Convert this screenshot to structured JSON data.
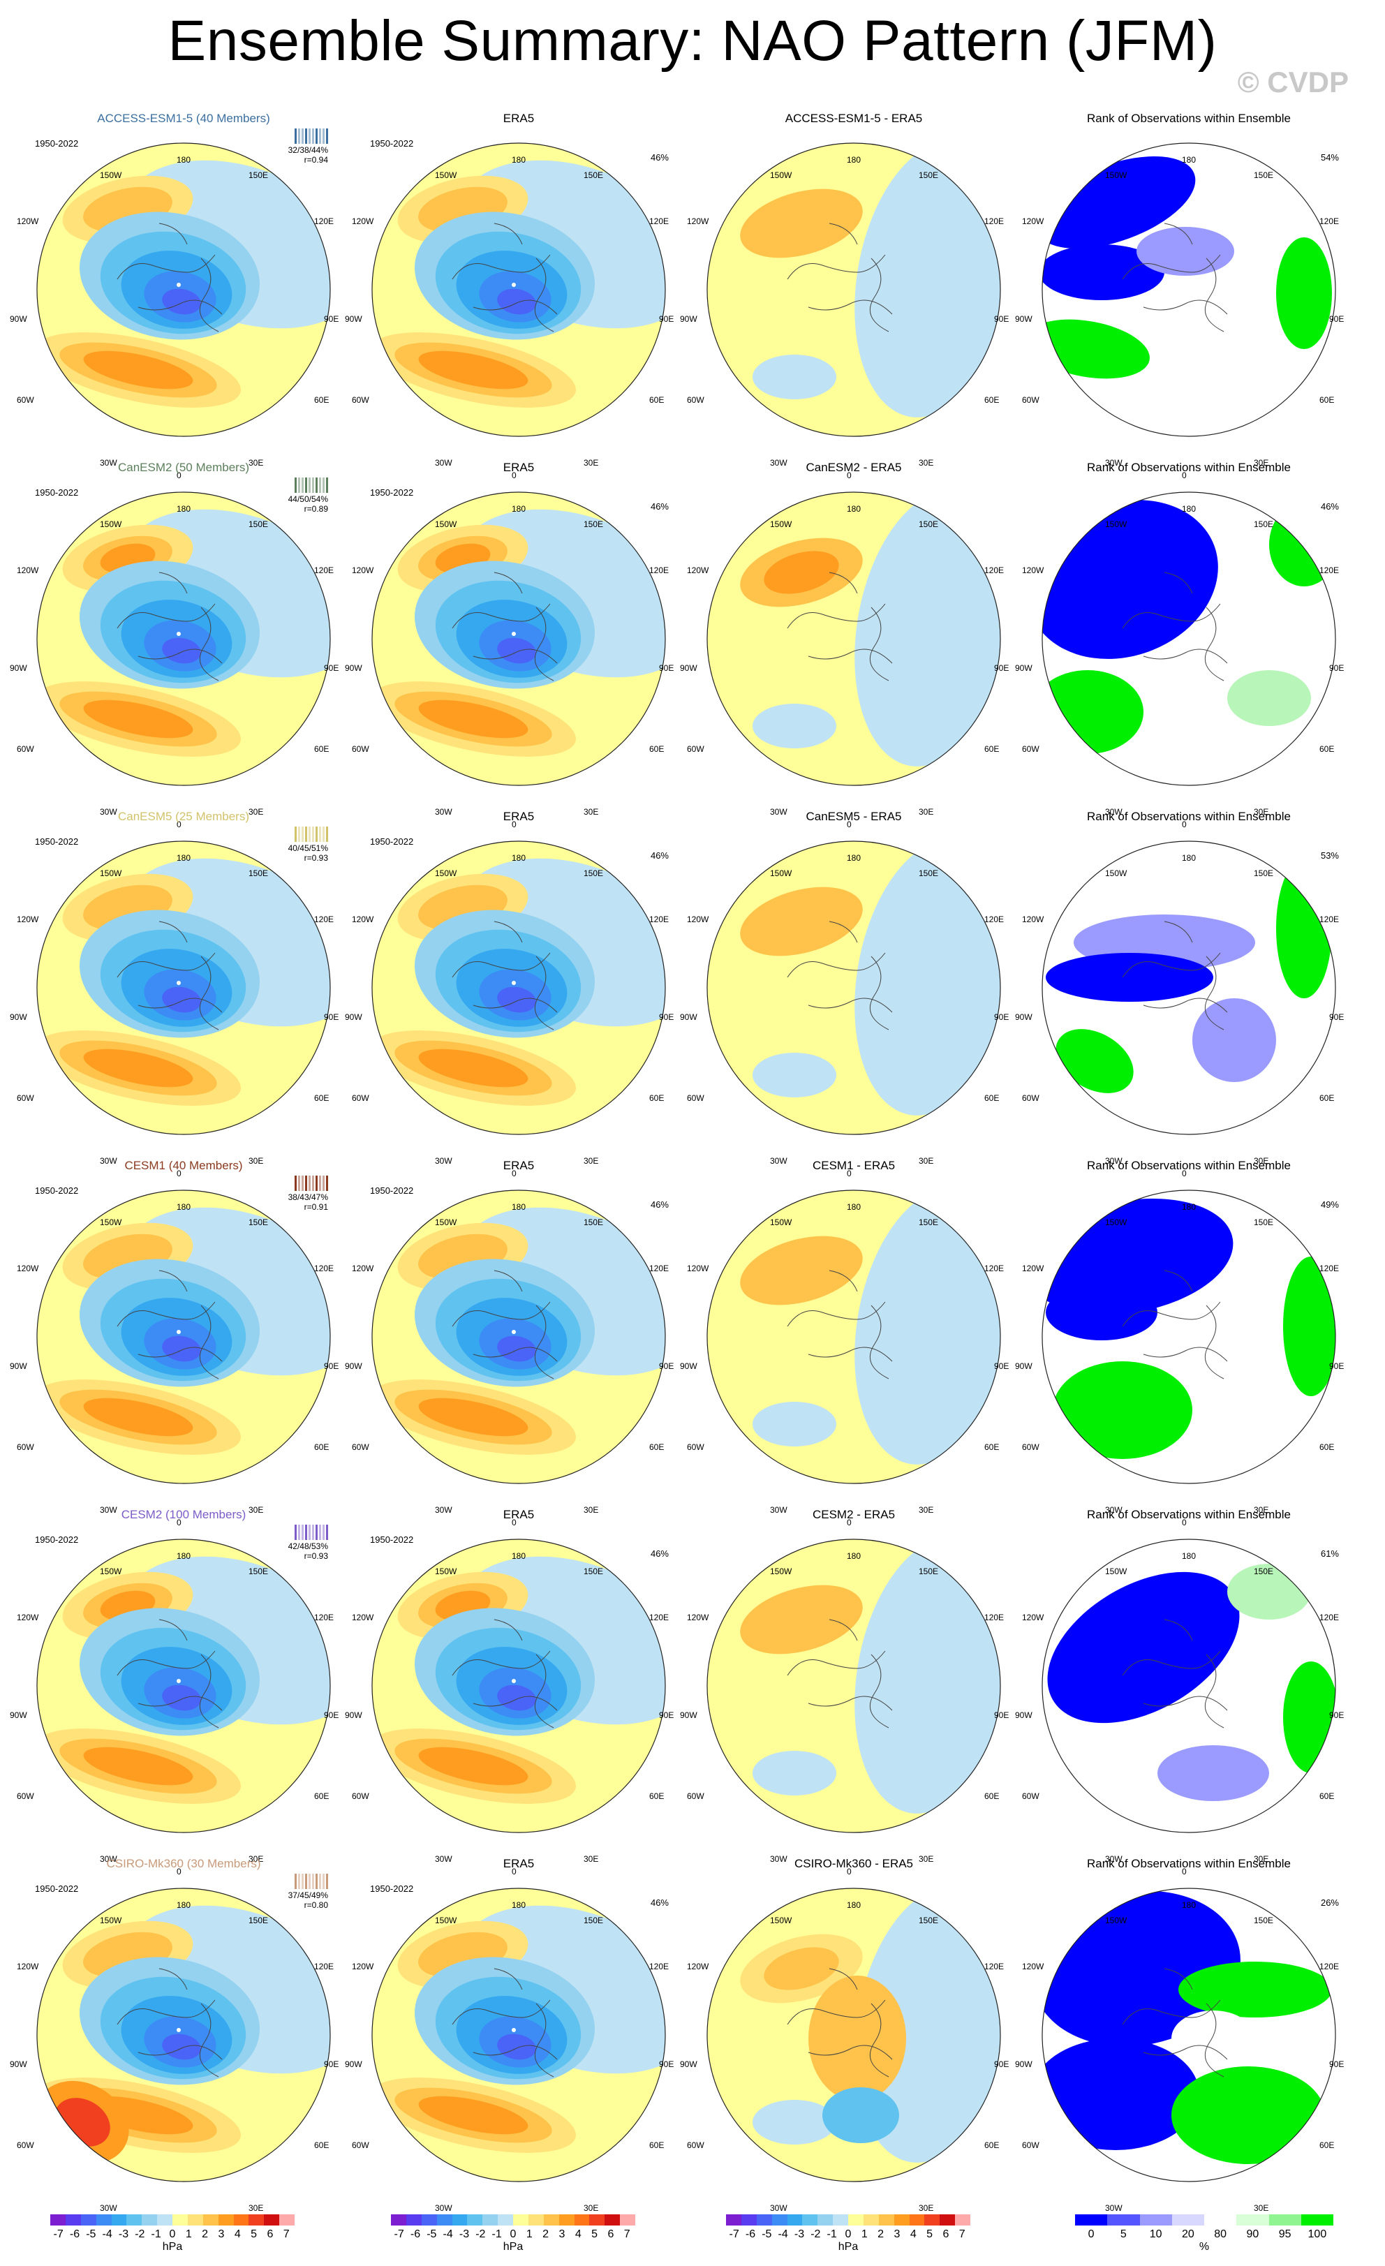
{
  "title": "Ensemble Summary: NAO Pattern (JFM)",
  "watermark": "© CVDP",
  "period": "1950-2022",
  "map_labels": {
    "top": "180",
    "top_left": "150W",
    "top_right": "150E",
    "upper_left": "120W",
    "upper_right": "120E",
    "left": "90W",
    "right": "90E",
    "lower_left": "60W",
    "lower_right": "60E",
    "bottom_left": "30W",
    "bottom_right": "30E",
    "bottom": "0"
  },
  "colors": {
    "model_title_colors": [
      "#3a6fa0",
      "#5c7f5c",
      "#d2c36a",
      "#8b3a1f",
      "#7b5cc8",
      "#c89a7a"
    ],
    "rank_low": "#0000ff",
    "rank_mid": "#ffffff",
    "rank_high": "#00ee00"
  },
  "rows": [
    {
      "model": "ACCESS-ESM1-5 (40 Members)",
      "inset": "32/38/44%",
      "r": "r=0.94",
      "diff_title": "ACCESS-ESM1-5 - ERA5",
      "era5_pct": "46%",
      "rank_pct": "54%"
    },
    {
      "model": "CanESM2 (50 Members)",
      "inset": "44/50/54%",
      "r": "r=0.89",
      "diff_title": "CanESM2 - ERA5",
      "era5_pct": "46%",
      "rank_pct": "46%"
    },
    {
      "model": "CanESM5 (25 Members)",
      "inset": "40/45/51%",
      "r": "r=0.93",
      "diff_title": "CanESM5 - ERA5",
      "era5_pct": "46%",
      "rank_pct": "53%"
    },
    {
      "model": "CESM1 (40 Members)",
      "inset": "38/43/47%",
      "r": "r=0.91",
      "diff_title": "CESM1 - ERA5",
      "era5_pct": "46%",
      "rank_pct": "49%"
    },
    {
      "model": "CESM2 (100 Members)",
      "inset": "42/48/53%",
      "r": "r=0.93",
      "diff_title": "CESM2 - ERA5",
      "era5_pct": "46%",
      "rank_pct": "61%"
    },
    {
      "model": "CSIRO-Mk360 (30 Members)",
      "inset": "37/45/49%",
      "r": "r=0.80",
      "diff_title": "CSIRO-Mk360 - ERA5",
      "era5_pct": "46%",
      "rank_pct": "26%"
    }
  ],
  "obs_title": "ERA5",
  "rank_title": "Rank of Observations within Ensemble",
  "colorbars": {
    "hpa_ticks": [
      "-7",
      "-6",
      "-5",
      "-4",
      "-3",
      "-2",
      "-1",
      "0",
      "1",
      "2",
      "3",
      "4",
      "5",
      "6",
      "7"
    ],
    "hpa_unit": "hPa",
    "hpa_colors": [
      "#7b1fd0",
      "#5a3cf0",
      "#4a64f8",
      "#3d8cf5",
      "#35a8f0",
      "#60c2ef",
      "#94d2f0",
      "#bfe2f4",
      "#ffff99",
      "#ffe37a",
      "#ffc24a",
      "#ff9d20",
      "#ff7518",
      "#f04020",
      "#d01010",
      "#ffaaaa"
    ],
    "rank_ticks": [
      "0",
      "5",
      "10",
      "20",
      "80",
      "90",
      "95",
      "100"
    ],
    "rank_unit": "%",
    "rank_colors": [
      "#0000ff",
      "#5555ff",
      "#9a9aff",
      "#d8d8ff",
      "#ffffff",
      "#d8ffd8",
      "#90f590",
      "#00ee00"
    ]
  }
}
